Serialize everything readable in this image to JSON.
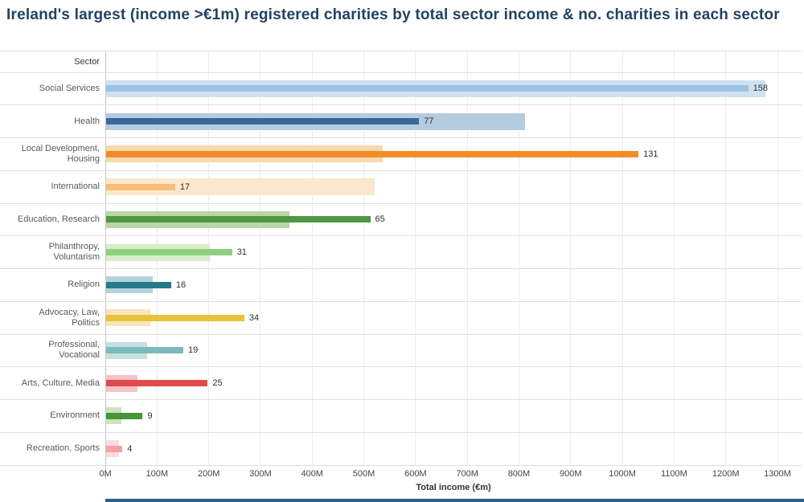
{
  "title": "Ireland's largest (income >€1m) registered charities by total sector income & no. charities in each sector",
  "chart_data": {
    "type": "bar",
    "orientation": "horizontal",
    "title": "Ireland's largest (income >€1m) registered charities by total sector income & no. charities in each sector",
    "column_header": "Sector",
    "categories": [
      "Social Services",
      "Health",
      "Local Development, Housing",
      "International",
      "Education, Research",
      "Philanthropy, Voluntarism",
      "Religion",
      "Advocacy, Law, Politics",
      "Professional, Vocational",
      "Arts, Culture, Media",
      "Environment",
      "Recreation, Sports"
    ],
    "series": [
      {
        "name": "Total sector income (€m)",
        "style": "wide pale bar",
        "values": [
          1275,
          810,
          535,
          520,
          355,
          200,
          90,
          85,
          80,
          60,
          30,
          25
        ]
      },
      {
        "name": "No. charities in each sector",
        "style": "thin saturated bar on hidden secondary axis",
        "values": [
          158,
          77,
          131,
          17,
          65,
          31,
          16,
          34,
          19,
          25,
          9,
          4
        ]
      }
    ],
    "xlabel": "Total income (€m)",
    "xlim": [
      0,
      1300
    ],
    "x_ticks": [
      "0M",
      "100M",
      "200M",
      "300M",
      "400M",
      "500M",
      "600M",
      "700M",
      "800M",
      "900M",
      "1000M",
      "1100M",
      "1200M",
      "1300M"
    ],
    "count_to_income_scale": 7.86,
    "legend": "none",
    "grid": {
      "vertical_gridlines_every": "100M",
      "horizontal_row_separators": true
    },
    "bar_colors": [
      {
        "income": "#cde1f2",
        "count": "#9cc3e4"
      },
      {
        "income": "#b4cbe0",
        "count": "#3a689c"
      },
      {
        "income": "#f9d8ac",
        "count": "#f28c28"
      },
      {
        "income": "#fce7cd",
        "count": "#f9bd79"
      },
      {
        "income": "#b8d6a8",
        "count": "#4f9743"
      },
      {
        "income": "#d8edca",
        "count": "#8ed07c"
      },
      {
        "income": "#b5d3da",
        "count": "#27798a"
      },
      {
        "income": "#f6e6ba",
        "count": "#e8c23c"
      },
      {
        "income": "#c6dfdf",
        "count": "#7cbabc"
      },
      {
        "income": "#f3c5c3",
        "count": "#df4a4e"
      },
      {
        "income": "#cae4bc",
        "count": "#47943a"
      },
      {
        "income": "#fadcdf",
        "count": "#f4a1a4"
      }
    ],
    "colors": {
      "title_text": "#234261",
      "axis_line": "#c6c6c6",
      "gridline": "#ebebeb",
      "row_divider": "#dedede",
      "sector_label_text": "#595959",
      "tick_text": "#464646",
      "bottom_divider": "#2e5e8c"
    }
  }
}
